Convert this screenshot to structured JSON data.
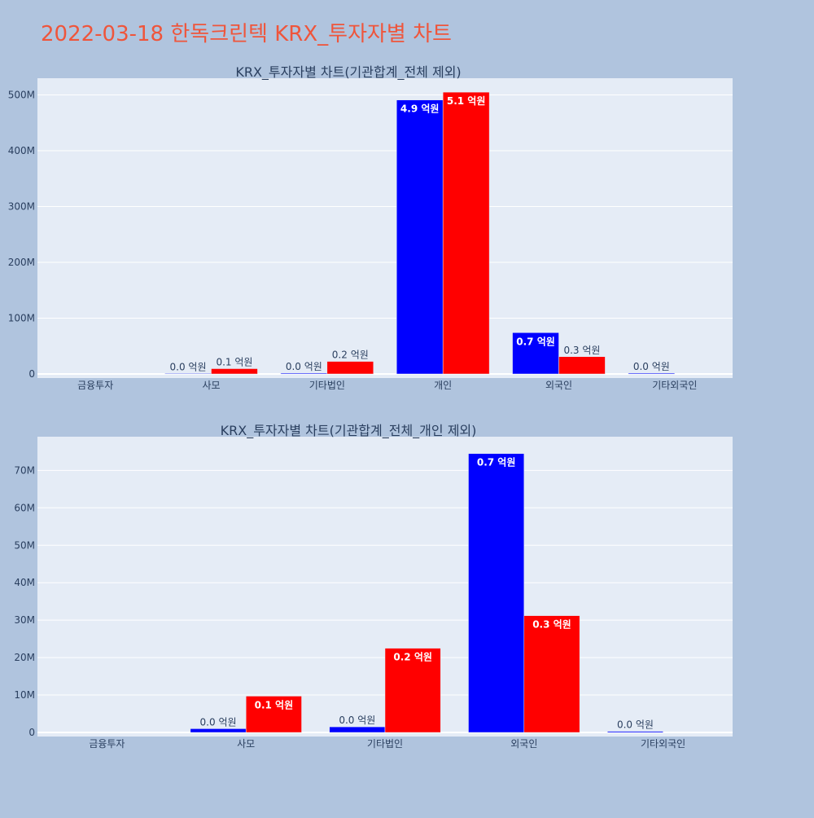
{
  "page": {
    "title": "2022-03-18 한독크린텍 KRX_투자자별 차트",
    "title_color": "#ef553b",
    "background": "#b0c4de"
  },
  "chart_data": [
    {
      "type": "bar",
      "title": "KRX_투자자별 차트(기관합계_전체 제외)",
      "categories": [
        "금융투자",
        "사모",
        "기타법인",
        "개인",
        "외국인",
        "기타외국인"
      ],
      "ylim": [
        0,
        530000000
      ],
      "yticks": [
        0,
        100000000,
        200000000,
        300000000,
        400000000,
        500000000
      ],
      "ytick_labels": [
        "0",
        "100M",
        "200M",
        "300M",
        "400M",
        "500M"
      ],
      "grid": true,
      "plot_background": "#e5ecf6",
      "series": [
        {
          "color": "#0000ff",
          "values": [
            0,
            1000000,
            1500000,
            491000000,
            74000000,
            1500000
          ],
          "labels": [
            "",
            "0.0 억원",
            "0.0 억원",
            "4.9 억원",
            "0.7 억원",
            "0.0 억원"
          ]
        },
        {
          "color": "#ff0000",
          "values": [
            0,
            9500000,
            22500000,
            505000000,
            31000000,
            0
          ],
          "labels": [
            "",
            "0.1 억원",
            "0.2 억원",
            "5.1 억원",
            "0.3 억원",
            ""
          ]
        }
      ]
    },
    {
      "type": "bar",
      "title": "KRX_투자자별 차트(기관합계_전체_개인 제외)",
      "categories": [
        "금융투자",
        "사모",
        "기타법인",
        "외국인",
        "기타외국인"
      ],
      "ylim": [
        0,
        79000000
      ],
      "yticks": [
        0,
        10000000,
        20000000,
        30000000,
        40000000,
        50000000,
        60000000,
        70000000
      ],
      "ytick_labels": [
        "0",
        "10M",
        "20M",
        "30M",
        "40M",
        "50M",
        "60M",
        "70M"
      ],
      "grid": true,
      "plot_background": "#e5ecf6",
      "series": [
        {
          "color": "#0000ff",
          "values": [
            0,
            1000000,
            1500000,
            74500000,
            300000
          ],
          "labels": [
            "",
            "0.0 억원",
            "0.0 억원",
            "0.7 억원",
            "0.0 억원"
          ]
        },
        {
          "color": "#ff0000",
          "values": [
            0,
            9700000,
            22500000,
            31200000,
            0
          ],
          "labels": [
            "",
            "0.1 억원",
            "0.2 억원",
            "0.3 억원",
            ""
          ]
        }
      ]
    }
  ]
}
